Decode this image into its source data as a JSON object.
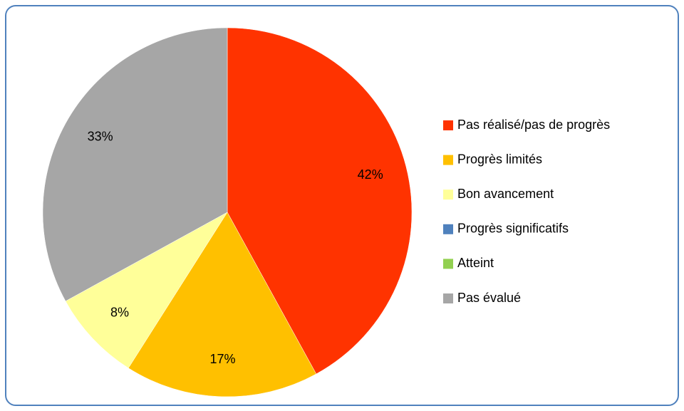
{
  "chart_data": {
    "type": "pie",
    "categories": [
      "Pas réalisé/pas de progrès",
      "Progrès  limités",
      "Bon avancement",
      "Progrès significatifs",
      "Atteint",
      "Pas évalué"
    ],
    "values": [
      42,
      17,
      8,
      0,
      0,
      33
    ],
    "value_labels": [
      "42%",
      "17%",
      "8%",
      null,
      null,
      "33%"
    ],
    "colors": [
      "#ff3300",
      "#ffc000",
      "#ffff99",
      "#4f81bd",
      "#92d050",
      "#a6a6a6"
    ],
    "legend": "right"
  }
}
